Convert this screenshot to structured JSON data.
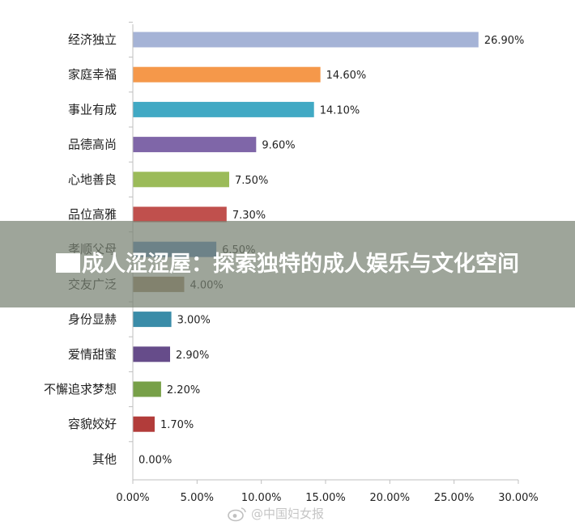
{
  "banner": {
    "title": "成人涩涩屋：探索独特的成人娱乐与文化空间"
  },
  "watermark": {
    "text": "@中国妇女报"
  },
  "colors": {
    "axis": "#bfbfbf",
    "text": "#222222"
  },
  "chart_data": {
    "type": "bar",
    "orientation": "horizontal",
    "title": "",
    "xlabel": "",
    "ylabel": "",
    "xlim": [
      0,
      30
    ],
    "x_ticks": [
      "0.00%",
      "5.00%",
      "10.00%",
      "15.00%",
      "20.00%",
      "25.00%",
      "30.00%"
    ],
    "grid": false,
    "categories": [
      "经济独立",
      "家庭幸福",
      "事业有成",
      "品德高尚",
      "心地善良",
      "品位高雅",
      "孝顺父母",
      "交友广泛",
      "身份显赫",
      "爱情甜蜜",
      "不懈追求梦想",
      "容貌姣好",
      "其他"
    ],
    "values": [
      26.9,
      14.6,
      14.1,
      9.6,
      7.5,
      7.3,
      6.5,
      4.0,
      3.0,
      2.9,
      2.2,
      1.7,
      0.0
    ],
    "value_labels": [
      "26.90%",
      "14.60%",
      "14.10%",
      "9.60%",
      "7.50%",
      "7.30%",
      "6.50%",
      "4.00%",
      "3.00%",
      "2.90%",
      "2.20%",
      "1.70%",
      "0.00%"
    ],
    "bar_colors": [
      "#a5b3d6",
      "#f5984a",
      "#41a9c4",
      "#7f66a8",
      "#9bbb59",
      "#c0504d",
      "#4f81bd",
      "#9a8060",
      "#3a8ca8",
      "#664c8a",
      "#77a048",
      "#b23c3a",
      "#4f81bd"
    ]
  }
}
